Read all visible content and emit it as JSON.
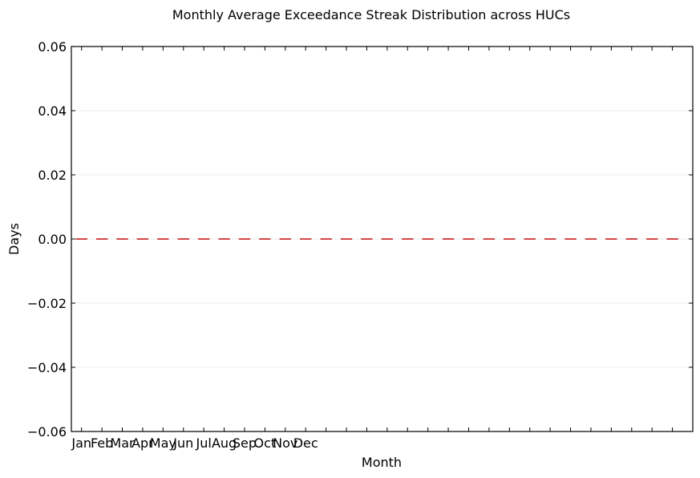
{
  "chart_data": {
    "type": "box",
    "title": "Monthly Average Exceedance Streak Distribution across HUCs",
    "xlabel": "Month",
    "ylabel": "Days",
    "ylim": [
      -0.06,
      0.06
    ],
    "yticks": [
      -0.06,
      -0.04,
      -0.02,
      0.0,
      0.02,
      0.04,
      0.06
    ],
    "ytick_labels": [
      "−0.06",
      "−0.04",
      "−0.02",
      "0.00",
      "0.02",
      "0.04",
      "0.06"
    ],
    "categories": [
      "Jan",
      "Feb",
      "Mar",
      "Apr",
      "May",
      "Jun",
      "Jul",
      "Aug",
      "Sep",
      "Oct",
      "Nov",
      "Dec"
    ],
    "box_positions": 30,
    "median_values": [
      0,
      0,
      0,
      0,
      0,
      0,
      0,
      0,
      0,
      0,
      0,
      0,
      0,
      0,
      0,
      0,
      0,
      0,
      0,
      0,
      0,
      0,
      0,
      0,
      0,
      0,
      0,
      0,
      0,
      0
    ],
    "grid": "horizontal",
    "colors": {
      "median": "#d62728",
      "box": "#000000",
      "grid": "#e6e6e6",
      "axis": "#000000"
    }
  }
}
